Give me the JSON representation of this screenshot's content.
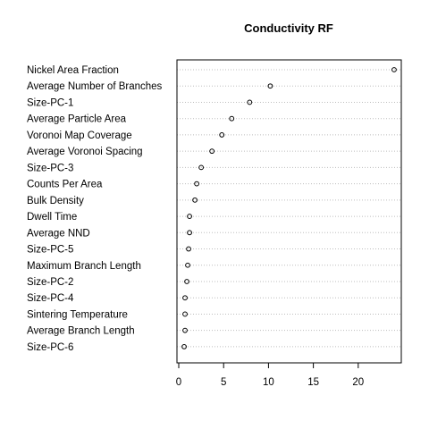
{
  "chart_data": {
    "type": "scatter",
    "title": "Conductivity RF",
    "xlabel": "",
    "ylabel": "",
    "xlim": [
      -0.2,
      24.8
    ],
    "xticks": [
      0,
      5,
      10,
      15,
      20
    ],
    "grid": "dotted horizontal guide lines per row",
    "categories": [
      "Nickel Area Fraction",
      "Average Number of Branches",
      "Size-PC-1",
      "Average Particle Area",
      "Voronoi Map Coverage",
      "Average Voronoi Spacing",
      "Size-PC-3",
      "Counts Per Area",
      "Bulk Density",
      "Dwell Time",
      "Average NND",
      "Size-PC-5",
      "Maximum Branch Length",
      "Size-PC-2",
      "Size-PC-4",
      "Sintering Temperature",
      "Average Branch Length",
      "Size-PC-6"
    ],
    "values": [
      24.0,
      10.2,
      7.9,
      5.9,
      4.8,
      3.7,
      2.5,
      2.0,
      1.8,
      1.2,
      1.2,
      1.1,
      1.0,
      0.9,
      0.7,
      0.7,
      0.7,
      0.6
    ]
  }
}
